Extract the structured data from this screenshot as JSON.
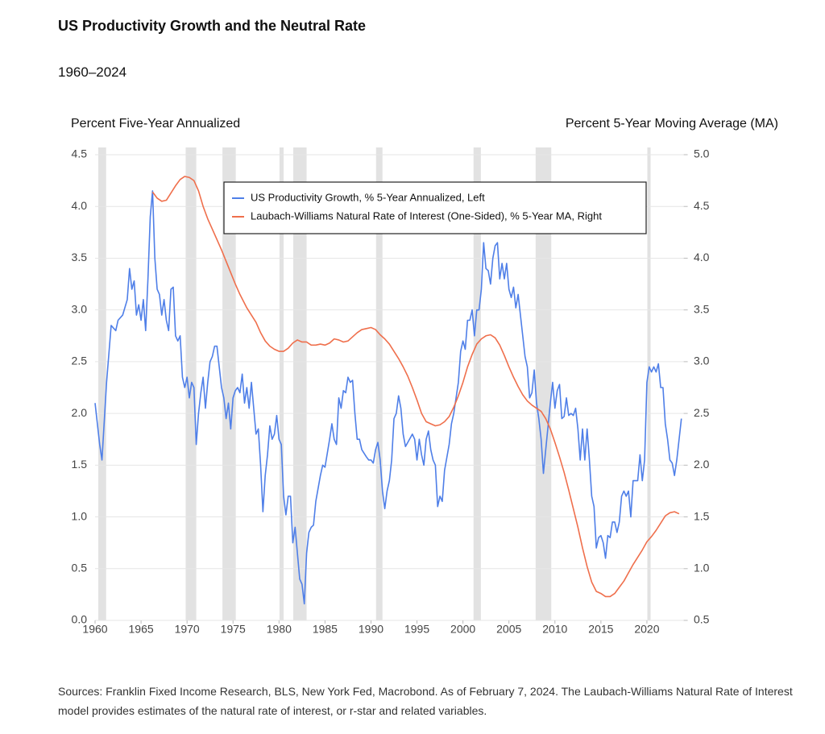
{
  "chart_data": {
    "type": "line",
    "title": "US Productivity Growth and the Neutral Rate",
    "subtitle": "1960–2024",
    "y_label": "Percent Five-Year Annualized",
    "y2_label": "Percent 5-Year Moving Average (MA)",
    "source": "Sources: Franklin Fixed Income Research, BLS, New York Fed, Macrobond. As of February 7, 2024. The Laubach-Williams Natural Rate of Interest model provides estimates of the natural rate of interest, or r-star and related variables.",
    "xlim": [
      1960,
      2024
    ],
    "xticks": [
      1960,
      1965,
      1970,
      1975,
      1980,
      1985,
      1990,
      1995,
      2000,
      2005,
      2010,
      2015,
      2020
    ],
    "ylim": [
      0,
      4.5
    ],
    "yticks": [
      {
        "value": 0,
        "label": "0.0"
      },
      0.5,
      {
        "value": 1,
        "label": "1.0"
      },
      1.5,
      {
        "value": 2,
        "label": "2.0"
      },
      2.5,
      {
        "value": 3,
        "label": "3.0"
      },
      3.5,
      {
        "value": 4,
        "label": "4.0"
      },
      4.5
    ],
    "y2lim": [
      0.5,
      5
    ],
    "y2ticks": [
      0.5,
      {
        "value": 1,
        "label": "1.0"
      },
      1.5,
      {
        "value": 2,
        "label": "2.0"
      },
      2.5,
      {
        "value": 3,
        "label": "3.0"
      },
      3.5,
      {
        "value": 4,
        "label": "4.0"
      },
      4.5,
      {
        "value": 5,
        "label": "5.0"
      }
    ],
    "grid": true,
    "shade_color": "#e2e2e2",
    "shaded_periods": [
      [
        1960.35,
        1961.2
      ],
      [
        1969.85,
        1971.0
      ],
      [
        1973.85,
        1975.3
      ],
      [
        1980.05,
        1980.5
      ],
      [
        1981.55,
        1983.0
      ],
      [
        1990.55,
        1991.25
      ],
      [
        2001.15,
        2001.95
      ],
      [
        2007.9,
        2009.6
      ],
      [
        2020.05,
        2020.4
      ]
    ],
    "series": [
      {
        "name": "US Productivity Growth, % 5-Year Annualized, Left",
        "color": "#4f7fe8",
        "axis": "y",
        "x": [
          1960,
          1960.5,
          1960.75,
          1961.25,
          1961.75,
          1962.25,
          1962.5,
          1963,
          1963.5,
          1963.75,
          1964,
          1964.25,
          1964.5,
          1964.75,
          1965,
          1965.25,
          1965.5,
          1965.75,
          1966,
          1966.25,
          1966.5,
          1966.75,
          1967,
          1967.25,
          1967.5,
          1967.75,
          1968,
          1968.25,
          1968.5,
          1968.75,
          1969,
          1969.25,
          1969.5,
          1969.75,
          1970,
          1970.25,
          1970.5,
          1970.75,
          1971,
          1971.25,
          1971.5,
          1971.75,
          1972,
          1972.25,
          1972.5,
          1972.75,
          1973,
          1973.25,
          1973.5,
          1973.75,
          1974,
          1974.25,
          1974.5,
          1974.75,
          1975,
          1975.25,
          1975.5,
          1975.75,
          1976,
          1976.25,
          1976.5,
          1976.75,
          1977,
          1977.25,
          1977.5,
          1977.75,
          1978,
          1978.25,
          1978.5,
          1978.75,
          1979,
          1979.25,
          1979.5,
          1979.75,
          1980,
          1980.25,
          1980.5,
          1980.75,
          1981,
          1981.25,
          1981.5,
          1981.75,
          1982,
          1982.25,
          1982.5,
          1982.75,
          1983,
          1983.25,
          1983.5,
          1983.75,
          1984,
          1984.5,
          1984.75,
          1985,
          1985.5,
          1985.75,
          1986,
          1986.25,
          1986.5,
          1986.75,
          1987,
          1987.25,
          1987.5,
          1987.75,
          1988,
          1988.25,
          1988.5,
          1988.75,
          1989,
          1989.5,
          1989.75,
          1990,
          1990.25,
          1990.5,
          1990.75,
          1991,
          1991.25,
          1991.5,
          1991.75,
          1992,
          1992.25,
          1992.5,
          1992.75,
          1993,
          1993.25,
          1993.5,
          1993.75,
          1994,
          1994.5,
          1994.75,
          1995,
          1995.25,
          1995.5,
          1995.75,
          1996,
          1996.25,
          1996.5,
          1996.75,
          1997,
          1997.25,
          1997.5,
          1997.75,
          1998,
          1998.5,
          1998.75,
          1999,
          1999.5,
          1999.75,
          2000,
          2000.25,
          2000.5,
          2000.75,
          2001,
          2001.25,
          2001.5,
          2001.75,
          2002,
          2002.25,
          2002.5,
          2002.75,
          2003,
          2003.25,
          2003.5,
          2003.75,
          2004,
          2004.25,
          2004.5,
          2004.75,
          2005,
          2005.25,
          2005.5,
          2005.75,
          2006,
          2006.5,
          2006.75,
          2007,
          2007.25,
          2007.5,
          2007.75,
          2008,
          2008.25,
          2008.5,
          2008.75,
          2009,
          2009.5,
          2009.75,
          2010,
          2010.25,
          2010.5,
          2010.75,
          2011,
          2011.25,
          2011.5,
          2011.75,
          2012,
          2012.25,
          2012.5,
          2012.75,
          2013,
          2013.25,
          2013.5,
          2013.75,
          2014,
          2014.25,
          2014.5,
          2014.75,
          2015,
          2015.25,
          2015.5,
          2015.75,
          2016,
          2016.25,
          2016.5,
          2016.75,
          2017,
          2017.25,
          2017.5,
          2017.75,
          2018,
          2018.25,
          2018.5,
          2018.75,
          2019,
          2019.25,
          2019.5,
          2019.75,
          2020,
          2020.25,
          2020.5,
          2020.75,
          2021,
          2021.25,
          2021.5,
          2021.75,
          2022,
          2022.25,
          2022.5,
          2022.75,
          2023,
          2023.25,
          2023.75
        ],
        "values": [
          2.1,
          1.7,
          1.55,
          2.3,
          2.85,
          2.8,
          2.9,
          2.95,
          3.1,
          3.4,
          3.2,
          3.28,
          2.95,
          3.05,
          2.9,
          3.1,
          2.8,
          3.3,
          3.9,
          4.15,
          3.5,
          3.2,
          3.15,
          2.95,
          3.1,
          2.9,
          2.8,
          3.2,
          3.22,
          2.75,
          2.7,
          2.75,
          2.35,
          2.25,
          2.35,
          2.15,
          2.3,
          2.25,
          1.7,
          2.0,
          2.2,
          2.35,
          2.05,
          2.3,
          2.5,
          2.55,
          2.65,
          2.65,
          2.45,
          2.25,
          2.15,
          1.95,
          2.1,
          1.85,
          2.15,
          2.22,
          2.25,
          2.2,
          2.38,
          2.1,
          2.25,
          2.05,
          2.3,
          2.05,
          1.8,
          1.85,
          1.5,
          1.05,
          1.4,
          1.6,
          1.88,
          1.75,
          1.8,
          1.98,
          1.75,
          1.7,
          1.2,
          1.02,
          1.2,
          1.2,
          0.75,
          0.9,
          0.65,
          0.4,
          0.35,
          0.16,
          0.65,
          0.85,
          0.9,
          0.92,
          1.15,
          1.4,
          1.5,
          1.48,
          1.75,
          1.9,
          1.75,
          1.7,
          2.15,
          2.05,
          2.22,
          2.2,
          2.35,
          2.3,
          2.32,
          2.0,
          1.75,
          1.75,
          1.65,
          1.58,
          1.55,
          1.55,
          1.52,
          1.65,
          1.72,
          1.55,
          1.25,
          1.08,
          1.25,
          1.35,
          1.55,
          1.95,
          2.0,
          2.17,
          2.05,
          1.8,
          1.68,
          1.72,
          1.8,
          1.75,
          1.55,
          1.75,
          1.6,
          1.5,
          1.75,
          1.83,
          1.65,
          1.55,
          1.5,
          1.1,
          1.2,
          1.15,
          1.45,
          1.7,
          1.9,
          2.0,
          2.3,
          2.6,
          2.7,
          2.62,
          2.9,
          2.9,
          3.0,
          2.75,
          3.0,
          3.0,
          3.2,
          3.65,
          3.4,
          3.38,
          3.25,
          3.5,
          3.62,
          3.65,
          3.3,
          3.45,
          3.3,
          3.45,
          3.2,
          3.12,
          3.22,
          3.02,
          3.15,
          2.75,
          2.55,
          2.45,
          2.15,
          2.2,
          2.42,
          2.1,
          1.95,
          1.75,
          1.42,
          1.65,
          2.1,
          2.3,
          2.05,
          2.22,
          2.28,
          1.95,
          1.97,
          2.15,
          1.98,
          2.0,
          1.98,
          2.05,
          1.85,
          1.55,
          1.85,
          1.55,
          1.85,
          1.55,
          1.2,
          1.1,
          0.7,
          0.8,
          0.82,
          0.75,
          0.6,
          0.82,
          0.8,
          0.95,
          0.95,
          0.85,
          0.95,
          1.2,
          1.25,
          1.2,
          1.25,
          1.0,
          1.35,
          1.35,
          1.35,
          1.6,
          1.35,
          1.55,
          2.3,
          2.45,
          2.4,
          2.45,
          2.4,
          2.48,
          2.25,
          2.25,
          1.9,
          1.75,
          1.55,
          1.52,
          1.4,
          1.55,
          1.95
        ]
      },
      {
        "name": "Laubach-Williams Natural Rate of Interest (One-Sided), % 5-Year MA, Right",
        "color": "#ef6f4c",
        "axis": "y2",
        "x": [
          1966.25,
          1966.75,
          1967.25,
          1967.75,
          1968.25,
          1968.75,
          1969.25,
          1969.75,
          1970.25,
          1970.75,
          1971.25,
          1971.75,
          1972.25,
          1972.75,
          1973.25,
          1973.75,
          1974.25,
          1974.75,
          1975.25,
          1975.75,
          1976.5,
          1977,
          1977.5,
          1978,
          1978.5,
          1979,
          1979.5,
          1980,
          1980.5,
          1981,
          1981.5,
          1982,
          1982.5,
          1983,
          1983.5,
          1984,
          1984.5,
          1985,
          1985.5,
          1986,
          1986.5,
          1987,
          1987.5,
          1988,
          1988.5,
          1989,
          1989.5,
          1990,
          1990.5,
          1991,
          1991.5,
          1992,
          1992.5,
          1993,
          1993.5,
          1994,
          1994.5,
          1995,
          1995.5,
          1996,
          1996.5,
          1997,
          1997.5,
          1998,
          1998.5,
          1999,
          1999.5,
          2000,
          2000.5,
          2001,
          2001.5,
          2002,
          2002.5,
          2003,
          2003.5,
          2004,
          2004.5,
          2005,
          2005.5,
          2006,
          2006.5,
          2007,
          2007.5,
          2008,
          2008.5,
          2009,
          2009.5,
          2010,
          2010.5,
          2011,
          2011.5,
          2012,
          2012.5,
          2013,
          2013.5,
          2014,
          2014.5,
          2015,
          2015.5,
          2016,
          2016.5,
          2017,
          2017.5,
          2018,
          2018.5,
          2019,
          2019.5,
          2020,
          2020.5,
          2021,
          2021.5,
          2022,
          2022.5,
          2023,
          2023.5
        ],
        "values": [
          4.64,
          4.58,
          4.55,
          4.56,
          4.63,
          4.7,
          4.76,
          4.79,
          4.78,
          4.75,
          4.65,
          4.5,
          4.38,
          4.28,
          4.18,
          4.08,
          3.97,
          3.86,
          3.75,
          3.65,
          3.52,
          3.45,
          3.38,
          3.28,
          3.2,
          3.15,
          3.12,
          3.1,
          3.1,
          3.13,
          3.18,
          3.21,
          3.19,
          3.19,
          3.16,
          3.16,
          3.17,
          3.16,
          3.18,
          3.22,
          3.21,
          3.19,
          3.2,
          3.24,
          3.28,
          3.31,
          3.32,
          3.33,
          3.31,
          3.26,
          3.22,
          3.17,
          3.1,
          3.03,
          2.95,
          2.86,
          2.75,
          2.63,
          2.5,
          2.42,
          2.4,
          2.38,
          2.39,
          2.42,
          2.47,
          2.56,
          2.67,
          2.8,
          2.95,
          3.07,
          3.17,
          3.22,
          3.25,
          3.26,
          3.23,
          3.16,
          3.06,
          2.95,
          2.85,
          2.76,
          2.68,
          2.62,
          2.58,
          2.55,
          2.52,
          2.45,
          2.35,
          2.22,
          2.08,
          1.93,
          1.76,
          1.58,
          1.4,
          1.2,
          1.02,
          0.87,
          0.78,
          0.76,
          0.73,
          0.73,
          0.76,
          0.82,
          0.88,
          0.96,
          1.04,
          1.11,
          1.18,
          1.26,
          1.31,
          1.37,
          1.44,
          1.51,
          1.54,
          1.55,
          1.53
        ]
      }
    ]
  }
}
